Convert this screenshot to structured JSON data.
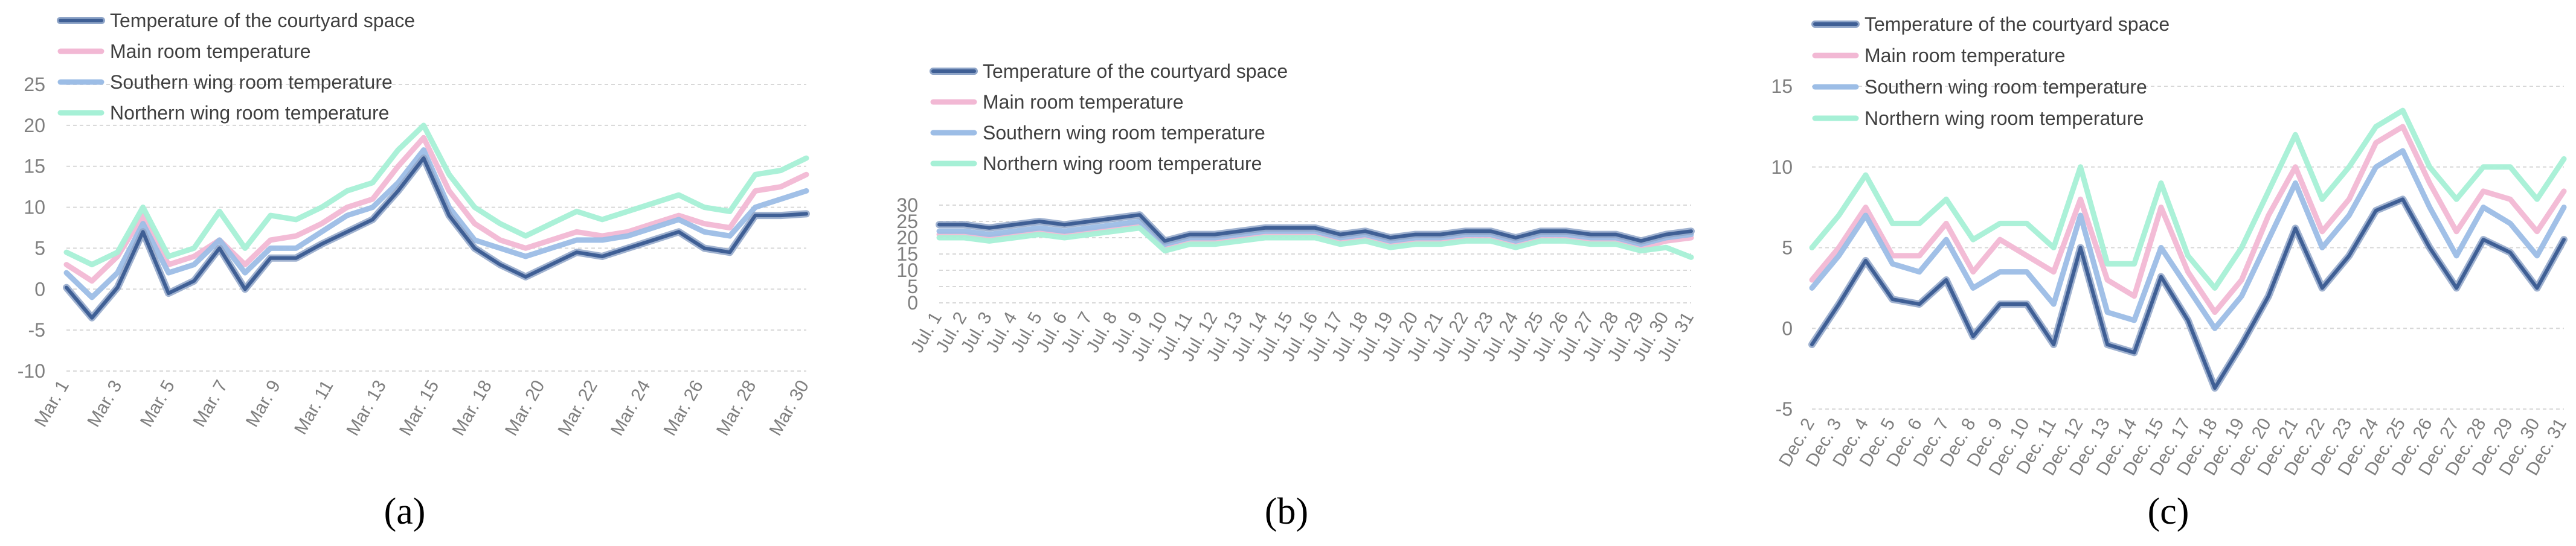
{
  "colors": {
    "courtyard": "#3f5f95",
    "main": "#f2b8d4",
    "southern": "#9cbde6",
    "northern": "#a6f0d6",
    "grid": "#d8d8d8",
    "tick": "#7f7f7f",
    "legend_text": "#404040"
  },
  "chart_data": [
    {
      "type": "line",
      "panel": "a",
      "caption": "(a)",
      "legend_position": "top-left",
      "ylim": [
        -10,
        25
      ],
      "yticks": [
        -10,
        -5,
        0,
        5,
        10,
        15,
        20,
        25
      ],
      "x_tick_labels": [
        "Mar. 1",
        "Mar. 3",
        "Mar. 5",
        "Mar. 7",
        "Mar. 9",
        "Mar. 11",
        "Mar. 13",
        "Mar. 15",
        "Mar. 18",
        "Mar. 20",
        "Mar. 22",
        "Mar. 24",
        "Mar. 26",
        "Mar. 28",
        "Mar. 30"
      ],
      "series": [
        {
          "name": "Temperature of the courtyard space",
          "key": "courtyard",
          "values": [
            0.2,
            -3.5,
            0.2,
            7,
            -0.5,
            1,
            5,
            0,
            3.8,
            3.8,
            5.5,
            7,
            8.5,
            12,
            16,
            9,
            5,
            3,
            1.5,
            3,
            4.5,
            4,
            5,
            6,
            7,
            5,
            4.5,
            9,
            9,
            9.2
          ]
        },
        {
          "name": "Main room temperature",
          "key": "main",
          "values": [
            3,
            1,
            4,
            9,
            3,
            4,
            6,
            3,
            6,
            6.5,
            8,
            10,
            11,
            15,
            18.5,
            12,
            8,
            6,
            5,
            6,
            7,
            6.5,
            7,
            8,
            9,
            8,
            7.5,
            12,
            12.5,
            14
          ]
        },
        {
          "name": "Southern wing room temperature",
          "key": "southern",
          "values": [
            2,
            -1,
            2,
            8,
            2,
            3,
            6,
            2,
            5,
            5,
            7,
            9,
            10,
            13,
            17,
            10,
            6,
            5,
            4,
            5,
            6,
            6,
            6.5,
            7.5,
            8.5,
            7,
            6.5,
            10,
            11,
            12
          ]
        },
        {
          "name": "Northern wing room temperature",
          "key": "northern",
          "values": [
            4.5,
            3,
            4.5,
            10,
            4,
            5,
            9.5,
            5,
            9,
            8.5,
            10,
            12,
            13,
            17,
            20,
            14,
            10,
            8,
            6.5,
            8,
            9.5,
            8.5,
            9.5,
            10.5,
            11.5,
            10,
            9.5,
            14,
            14.5,
            16
          ]
        }
      ]
    },
    {
      "type": "line",
      "panel": "b",
      "caption": "(b)",
      "legend_position": "top-center",
      "ylim": [
        0,
        30
      ],
      "yticks": [
        0,
        5,
        10,
        15,
        20,
        25,
        30
      ],
      "x_tick_labels": [
        "Jul. 1",
        "Jul. 2",
        "Jul. 3",
        "Jul. 4",
        "Jul. 5",
        "Jul. 6",
        "Jul. 7",
        "Jul. 8",
        "Jul. 9",
        "Jul. 10",
        "Jul. 11",
        "Jul. 12",
        "Jul. 13",
        "Jul. 14",
        "Jul. 15",
        "Jul. 16",
        "Jul. 17",
        "Jul. 18",
        "Jul. 19",
        "Jul. 20",
        "Jul. 21",
        "Jul. 22",
        "Jul. 23",
        "Jul. 24",
        "Jul. 25",
        "Jul. 26",
        "Jul. 27",
        "Jul. 28",
        "Jul. 29",
        "Jul. 30",
        "Jul. 31"
      ],
      "series": [
        {
          "name": "Temperature of the courtyard space",
          "key": "courtyard",
          "values": [
            24,
            24,
            23,
            24,
            25,
            24,
            25,
            26,
            27,
            19,
            21,
            21,
            22,
            23,
            23,
            23,
            21,
            22,
            20,
            21,
            21,
            22,
            22,
            20,
            22,
            22,
            21,
            21,
            19,
            21,
            22
          ]
        },
        {
          "name": "Main room temperature",
          "key": "main",
          "values": [
            21,
            21,
            20,
            21,
            22,
            21,
            22,
            23,
            24,
            17,
            19,
            19,
            20,
            21,
            21,
            21,
            19,
            20,
            18,
            19,
            19,
            20,
            20,
            18,
            20,
            20,
            19,
            19,
            17,
            19,
            20
          ]
        },
        {
          "name": "Southern wing room temperature",
          "key": "southern",
          "values": [
            22,
            22,
            21,
            22,
            23,
            22,
            23,
            24,
            25,
            18,
            20,
            20,
            21,
            22,
            22,
            22,
            20,
            21,
            19,
            20,
            20,
            21,
            21,
            19,
            21,
            21,
            20,
            20,
            18,
            20,
            21
          ]
        },
        {
          "name": "Northern wing room temperature",
          "key": "northern",
          "values": [
            20,
            20,
            19,
            20,
            21,
            20,
            21,
            22,
            23,
            16,
            18,
            18,
            19,
            20,
            20,
            20,
            18,
            19,
            17,
            18,
            18,
            19,
            19,
            17,
            19,
            19,
            18,
            18,
            16,
            17,
            14
          ]
        }
      ]
    },
    {
      "type": "line",
      "panel": "c",
      "caption": "(c)",
      "legend_position": "top-left",
      "ylim": [
        -5,
        15
      ],
      "yticks": [
        -5,
        0,
        5,
        10,
        15
      ],
      "x_tick_labels": [
        "Dec. 2",
        "Dec. 3",
        "Dec. 4",
        "Dec. 5",
        "Dec. 6",
        "Dec. 7",
        "Dec. 8",
        "Dec. 9",
        "Dec. 10",
        "Dec. 11",
        "Dec. 12",
        "Dec. 13",
        "Dec. 14",
        "Dec. 15",
        "Dec. 17",
        "Dec. 18",
        "Dec. 19",
        "Dec. 20",
        "Dec. 21",
        "Dec. 22",
        "Dec. 23",
        "Dec. 24",
        "Dec. 25",
        "Dec. 26",
        "Dec. 27",
        "Dec. 28",
        "Dec. 29",
        "Dec. 30",
        "Dec. 31"
      ],
      "series": [
        {
          "name": "Temperature of the courtyard space",
          "key": "courtyard",
          "values": [
            -1,
            1.5,
            4.2,
            1.8,
            1.5,
            3,
            -0.5,
            1.5,
            1.5,
            -1,
            5,
            -1,
            -1.5,
            3.2,
            0.5,
            -3.7,
            -1,
            2,
            6.2,
            2.5,
            4.5,
            7.3,
            8,
            5,
            2.5,
            5.5,
            4.7,
            2.5,
            5.5
          ]
        },
        {
          "name": "Main room temperature",
          "key": "main",
          "values": [
            3,
            5,
            7.5,
            4.5,
            4.5,
            6.5,
            3.5,
            5.5,
            4.5,
            3.5,
            8,
            3,
            2,
            7.5,
            3.5,
            1,
            3,
            7,
            10,
            6,
            8,
            11.5,
            12.5,
            9,
            6,
            8.5,
            8,
            6,
            8.5
          ]
        },
        {
          "name": "Southern wing room temperature",
          "key": "southern",
          "values": [
            2.5,
            4.5,
            7,
            4,
            3.5,
            5.5,
            2.5,
            3.5,
            3.5,
            1.5,
            7,
            1,
            0.5,
            5,
            2.5,
            0,
            2,
            5.5,
            9,
            5,
            7,
            10,
            11,
            7.5,
            4.5,
            7.5,
            6.5,
            4.5,
            7.5
          ]
        },
        {
          "name": "Northern wing room temperature",
          "key": "northern",
          "values": [
            5,
            7,
            9.5,
            6.5,
            6.5,
            8,
            5.5,
            6.5,
            6.5,
            5,
            10,
            4,
            4,
            9,
            4.5,
            2.5,
            5,
            8.5,
            12,
            8,
            10,
            12.5,
            13.5,
            10,
            8,
            10,
            10,
            8,
            10.5
          ]
        }
      ]
    }
  ]
}
